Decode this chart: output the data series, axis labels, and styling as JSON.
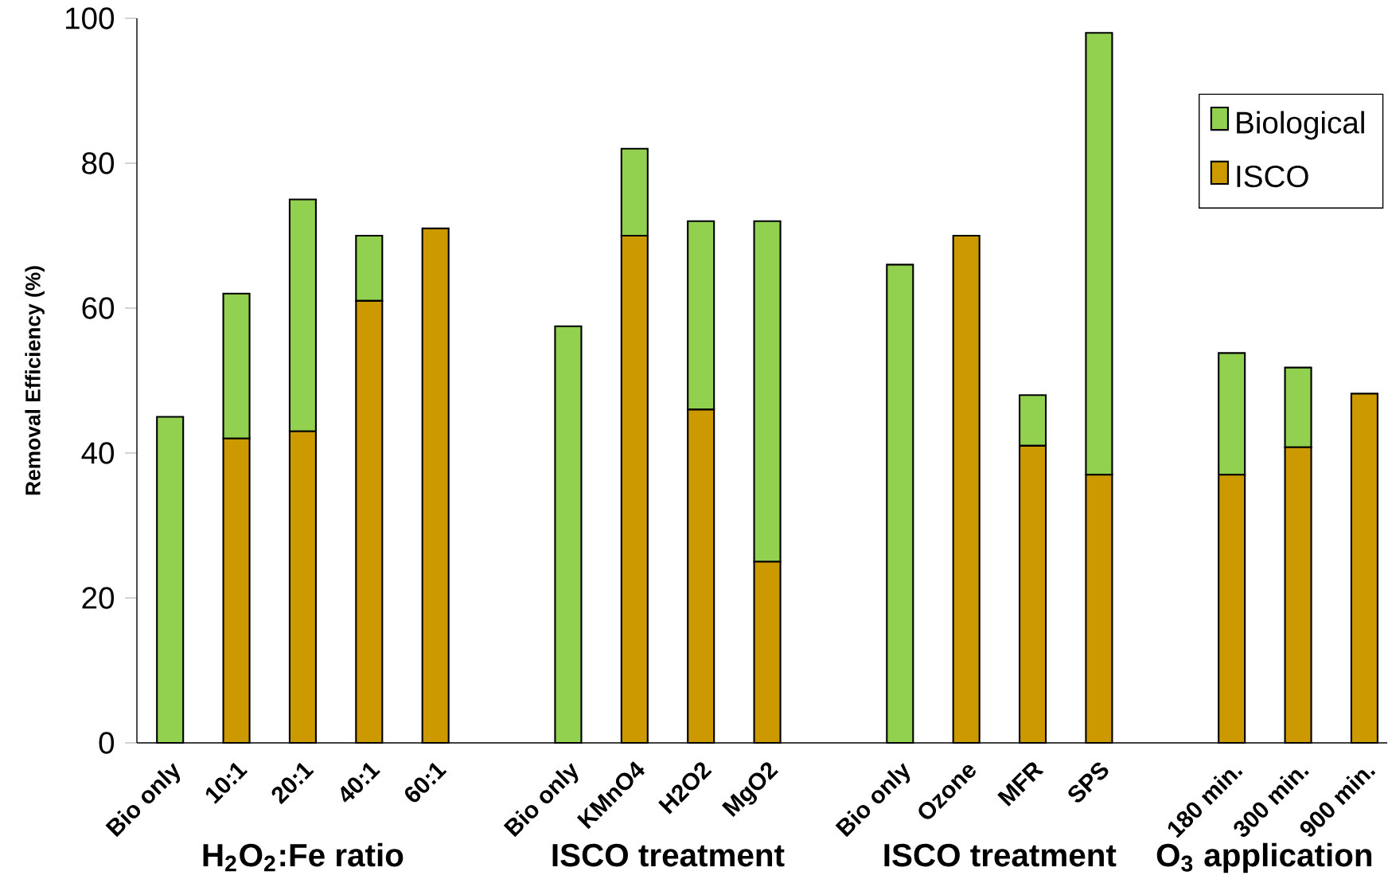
{
  "chart_data": {
    "type": "bar",
    "stacked": true,
    "ylabel": "Removal Efficiency (%)",
    "categories": [
      "Bio only",
      "10:1",
      "20:1",
      "40:1",
      "60:1",
      null,
      "Bio only",
      "KMnO4",
      "H2O2",
      "MgO2",
      null,
      "Bio only",
      "Ozone",
      "MFR",
      "SPS",
      null,
      "180 min.",
      "300 min.",
      "900 min."
    ],
    "series": [
      {
        "name": "ISCO",
        "color": "#cc9900",
        "values": [
          0,
          42,
          43,
          61,
          71,
          null,
          0,
          70,
          46,
          25,
          null,
          0,
          70,
          41,
          37,
          null,
          37,
          40.8,
          48.2
        ]
      },
      {
        "name": "Biological",
        "color": "#92d050",
        "values": [
          45,
          20,
          32,
          9,
          0,
          null,
          57.5,
          12,
          26,
          47,
          null,
          66,
          0,
          7,
          61,
          null,
          16.8,
          11,
          0
        ]
      }
    ],
    "ylim": [
      0,
      100
    ],
    "yticks": [
      0,
      20,
      40,
      60,
      80,
      100
    ],
    "legend": "top right",
    "grid": false,
    "annotations": [
      "H$_{2}$O$_{2}$:Fe ratio",
      "ISCO treatment",
      "ISCO treatment",
      "O$_{3}$ application"
    ]
  }
}
